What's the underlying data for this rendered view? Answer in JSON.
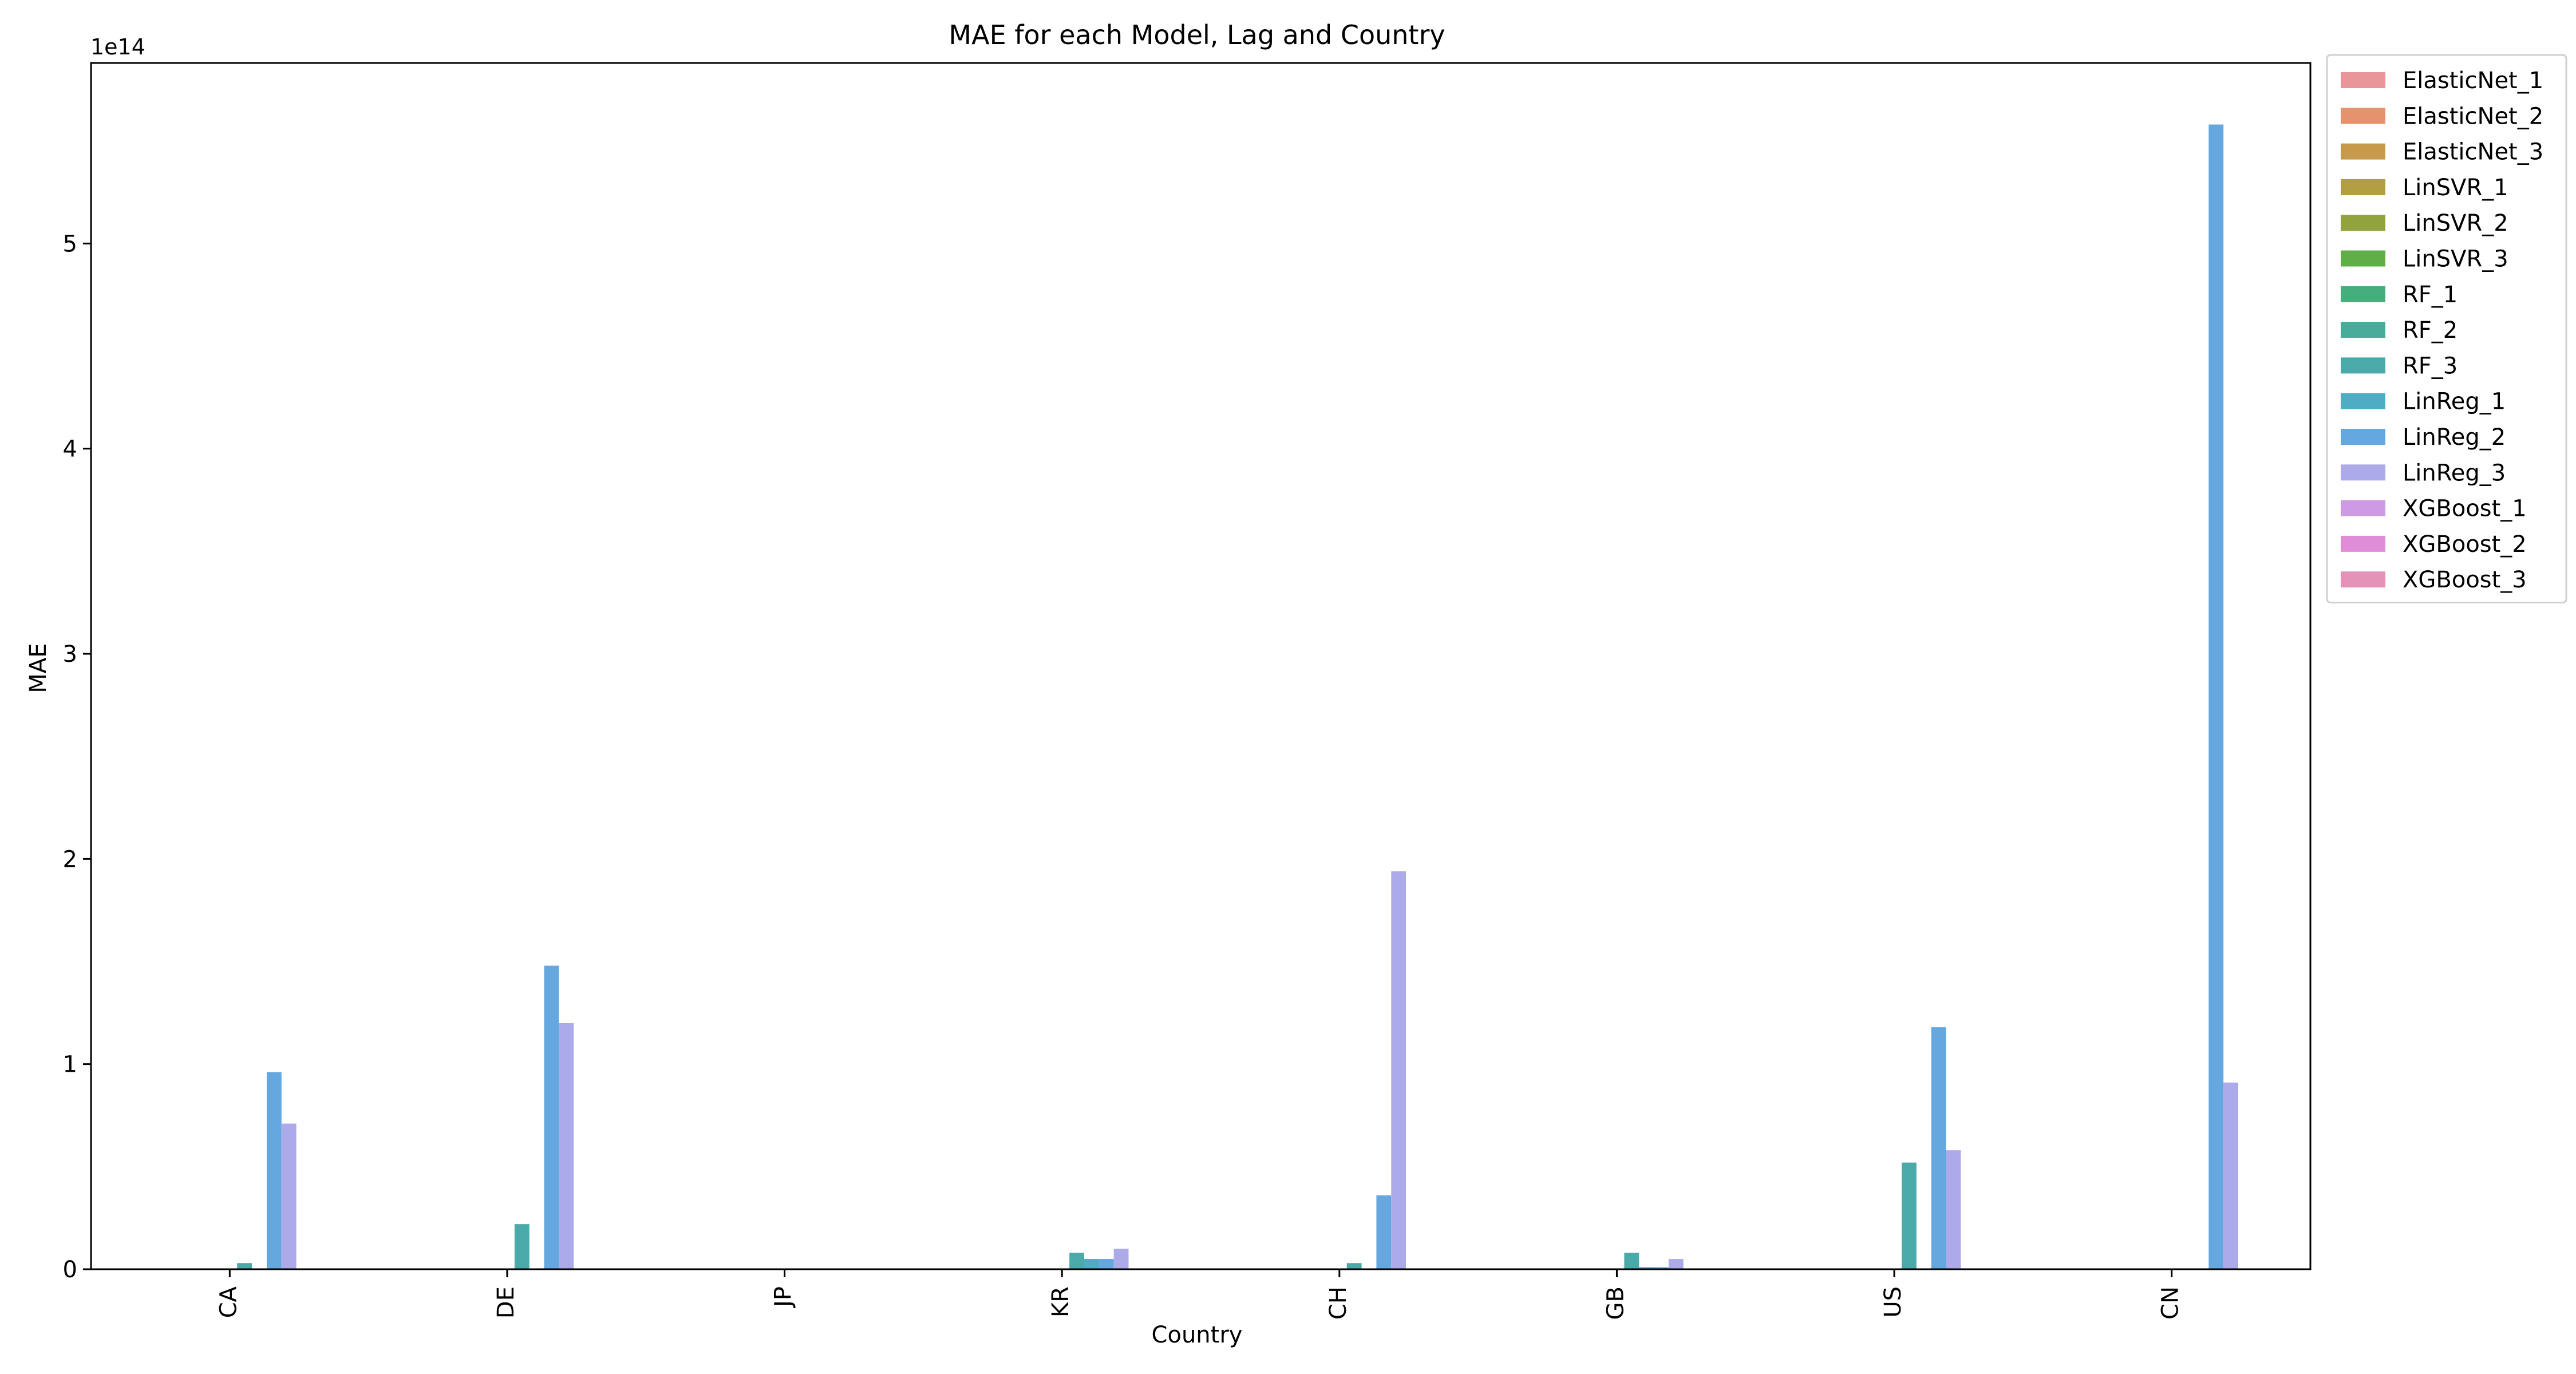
{
  "chart_data": {
    "type": "bar",
    "title": "MAE for each Model, Lag and Country",
    "xlabel": "Country",
    "ylabel": "MAE",
    "y_offset_label": "1e14",
    "y_multiplier": 100000000000000.0,
    "ylim": [
      0,
      5.88
    ],
    "yticks": [
      0,
      1,
      2,
      3,
      4,
      5
    ],
    "ytick_labels": [
      "0",
      "1",
      "2",
      "3",
      "4",
      "5"
    ],
    "categories": [
      "CA",
      "DE",
      "JP",
      "KR",
      "CH",
      "GB",
      "US",
      "CN"
    ],
    "grid": false,
    "legend_placement": "outside-top-right",
    "series": [
      {
        "name": "ElasticNet_1",
        "color": "#e8969a",
        "values": [
          0,
          0,
          0,
          0,
          0,
          0,
          0,
          0
        ]
      },
      {
        "name": "ElasticNet_2",
        "color": "#e5936c",
        "values": [
          0,
          0,
          0,
          0,
          0,
          0,
          0,
          0
        ]
      },
      {
        "name": "ElasticNet_3",
        "color": "#c69a4a",
        "values": [
          0,
          0,
          0,
          0,
          0,
          0,
          0,
          0
        ]
      },
      {
        "name": "LinSVR_1",
        "color": "#b2a040",
        "values": [
          0,
          0,
          0,
          0,
          0,
          0,
          0,
          0
        ]
      },
      {
        "name": "LinSVR_2",
        "color": "#90a33f",
        "values": [
          0,
          0,
          0,
          0,
          0,
          0,
          0,
          0
        ]
      },
      {
        "name": "LinSVR_3",
        "color": "#60ae47",
        "values": [
          0,
          0,
          0,
          0,
          0,
          0,
          0,
          0
        ]
      },
      {
        "name": "RF_1",
        "color": "#46ad7c",
        "values": [
          0,
          0,
          0,
          0,
          0,
          0,
          0,
          0
        ]
      },
      {
        "name": "RF_2",
        "color": "#47ad9b",
        "values": [
          0,
          0,
          0,
          0,
          0,
          0,
          0,
          0
        ]
      },
      {
        "name": "RF_3",
        "color": "#4aaaa9",
        "values": [
          0.03,
          0.22,
          0,
          0.08,
          0.03,
          0.08,
          0.52,
          0
        ]
      },
      {
        "name": "LinReg_1",
        "color": "#4dadc5",
        "values": [
          0,
          0,
          0,
          0.05,
          0,
          0.01,
          0,
          0
        ]
      },
      {
        "name": "LinReg_2",
        "color": "#64a8df",
        "values": [
          0.96,
          1.48,
          0,
          0.05,
          0.36,
          0.01,
          1.18,
          5.58
        ]
      },
      {
        "name": "LinReg_3",
        "color": "#adaaea",
        "values": [
          0.71,
          1.2,
          0,
          0.1,
          1.94,
          0.05,
          0.58,
          0.91
        ]
      },
      {
        "name": "XGBoost_1",
        "color": "#cf9ae5",
        "values": [
          0,
          0,
          0,
          0,
          0,
          0,
          0,
          0
        ]
      },
      {
        "name": "XGBoost_2",
        "color": "#e08dd9",
        "values": [
          0,
          0,
          0,
          0,
          0,
          0,
          0,
          0
        ]
      },
      {
        "name": "XGBoost_3",
        "color": "#e592b8",
        "values": [
          0,
          0,
          0,
          0,
          0,
          0,
          0,
          0
        ]
      }
    ]
  }
}
